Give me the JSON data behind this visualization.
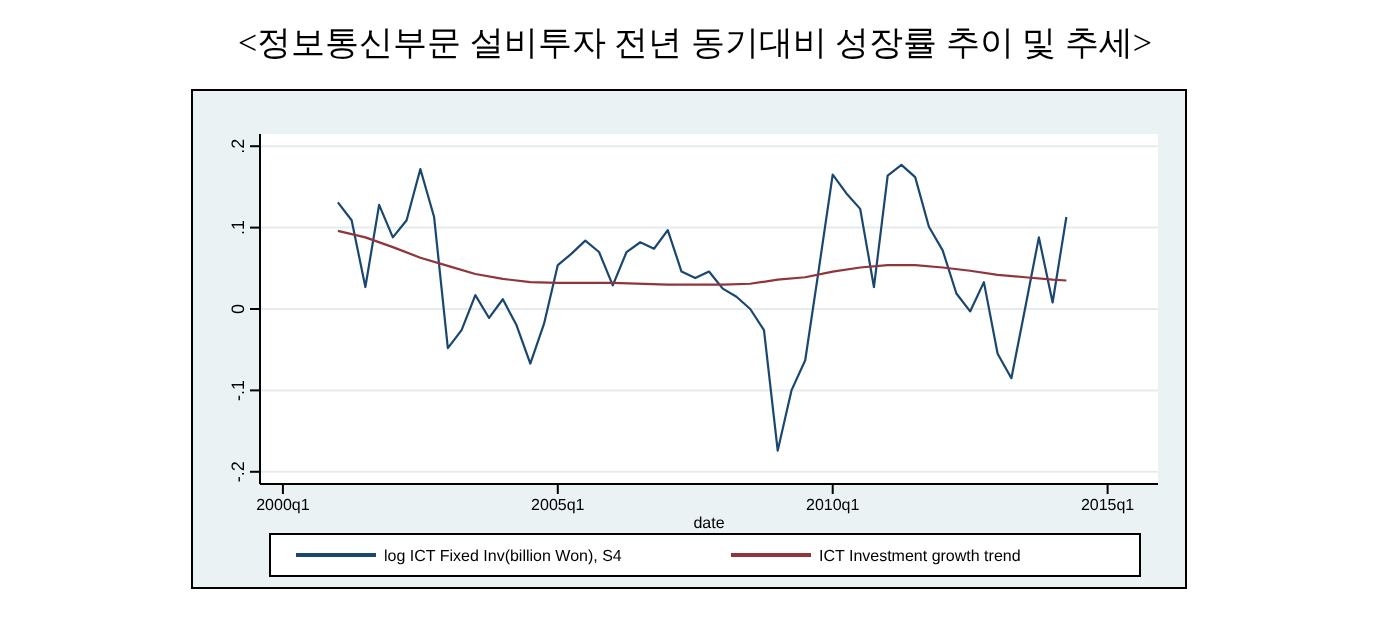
{
  "chart_data": {
    "type": "line",
    "title": "<정보통신부문 설비투자 전년 동기대비 성장률 추이 및 추세>",
    "xlabel": "date",
    "xlim": [
      "1999-08",
      "2015-12"
    ],
    "ylim": [
      -0.215,
      0.215
    ],
    "xticks": [
      {
        "value": "2000-01",
        "label": "2000q1"
      },
      {
        "value": "2005-01",
        "label": "2005q1"
      },
      {
        "value": "2010-01",
        "label": "2010q1"
      },
      {
        "value": "2015-01",
        "label": "2015q1"
      }
    ],
    "yticks": [
      {
        "value": -0.2,
        "label": "-.2"
      },
      {
        "value": -0.1,
        "label": "-.1"
      },
      0,
      {
        "value": 0.1,
        "label": ".1"
      },
      {
        "value": 0.2,
        "label": ".2"
      }
    ],
    "grid": "y",
    "legend": "bottom",
    "series": [
      {
        "name": "log ICT Fixed Inv(billion Won), S4",
        "color": "#1a476f",
        "x": [
          "2001-01",
          "2001-04",
          "2001-07",
          "2001-10",
          "2002-01",
          "2002-04",
          "2002-07",
          "2002-10",
          "2003-01",
          "2003-04",
          "2003-07",
          "2003-10",
          "2004-01",
          "2004-04",
          "2004-07",
          "2004-10",
          "2005-01",
          "2005-04",
          "2005-07",
          "2005-10",
          "2006-01",
          "2006-04",
          "2006-07",
          "2006-10",
          "2007-01",
          "2007-04",
          "2007-07",
          "2007-10",
          "2008-01",
          "2008-04",
          "2008-07",
          "2008-10",
          "2009-01",
          "2009-04",
          "2009-07",
          "2009-10",
          "2010-01",
          "2010-04",
          "2010-07",
          "2010-10",
          "2011-01",
          "2011-04",
          "2011-07",
          "2011-10",
          "2012-01",
          "2012-04",
          "2012-07",
          "2012-10",
          "2013-01",
          "2013-04",
          "2013-07",
          "2013-10",
          "2014-01",
          "2014-04"
        ],
        "values": [
          0.131,
          0.109,
          0.027,
          0.128,
          0.088,
          0.109,
          0.172,
          0.113,
          -0.048,
          -0.026,
          0.017,
          -0.011,
          0.012,
          -0.02,
          -0.067,
          -0.018,
          0.054,
          0.068,
          0.084,
          0.07,
          0.029,
          0.07,
          0.082,
          0.074,
          0.097,
          0.046,
          0.038,
          0.046,
          0.025,
          0.015,
          0.0,
          -0.026,
          -0.174,
          -0.1,
          -0.063,
          0.05,
          0.165,
          0.142,
          0.123,
          0.027,
          0.164,
          0.177,
          0.162,
          0.101,
          0.072,
          0.019,
          -0.003,
          0.033,
          -0.055,
          -0.085,
          0.001,
          0.088,
          0.008,
          0.113
        ]
      },
      {
        "name": "ICT Investment growth trend",
        "color": "#90353b",
        "x": [
          "2001-01",
          "2001-07",
          "2002-01",
          "2002-07",
          "2003-01",
          "2003-07",
          "2004-01",
          "2004-07",
          "2005-01",
          "2006-01",
          "2007-01",
          "2008-01",
          "2008-07",
          "2009-01",
          "2009-07",
          "2010-01",
          "2010-07",
          "2011-01",
          "2011-07",
          "2012-01",
          "2012-07",
          "2013-01",
          "2013-07",
          "2014-01",
          "2014-04"
        ],
        "values": [
          0.096,
          0.088,
          0.076,
          0.063,
          0.053,
          0.043,
          0.037,
          0.033,
          0.032,
          0.032,
          0.03,
          0.03,
          0.031,
          0.036,
          0.039,
          0.046,
          0.051,
          0.054,
          0.054,
          0.051,
          0.047,
          0.042,
          0.039,
          0.036,
          0.035
        ]
      }
    ]
  }
}
